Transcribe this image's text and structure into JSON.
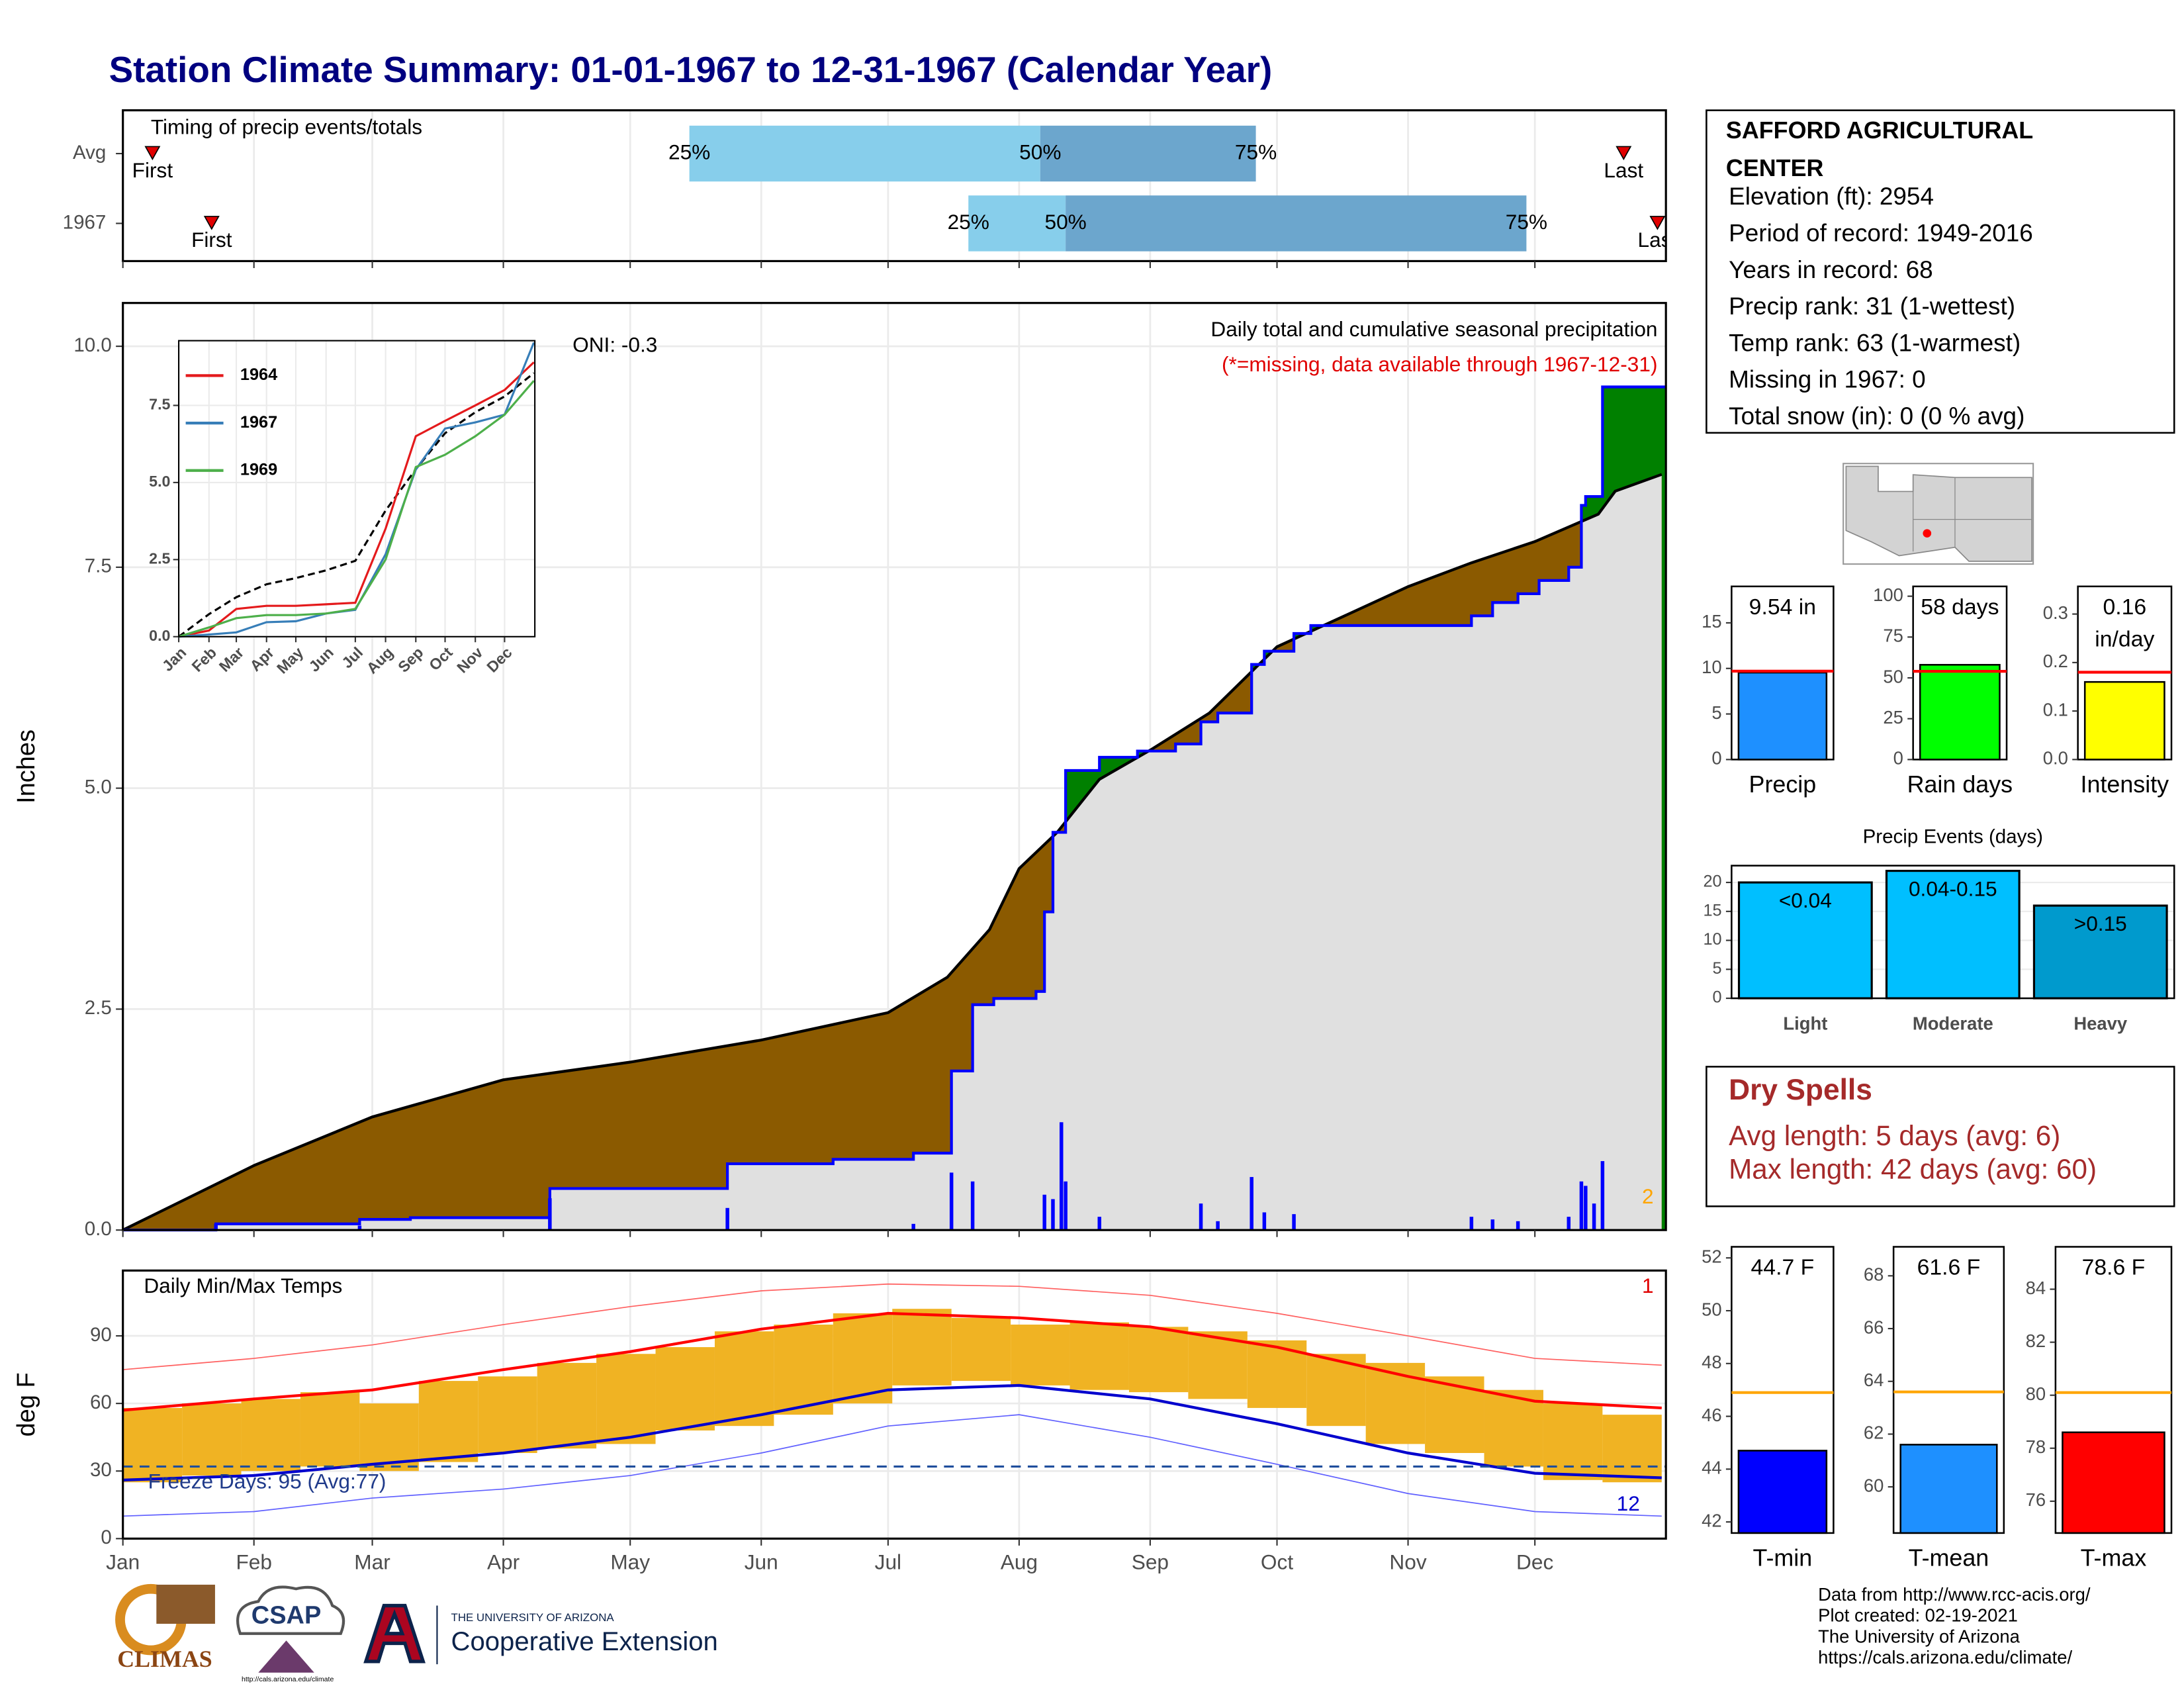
{
  "title": "Station Climate Summary: 01-01-1967 to 12-31-1967 (Calendar Year)",
  "station": {
    "name": "SAFFORD AGRICULTURAL CENTER",
    "lines": [
      "Elevation (ft): 2954",
      "Period of record: 1949-2016",
      "Years in record: 68",
      "Precip rank: 31 (1-wettest)",
      "Temp rank: 63 (1-warmest)",
      "Missing in 1967: 0",
      "Total snow (in): 0 (0 % avg)"
    ]
  },
  "dry_spells": {
    "title": "Dry Spells",
    "lines": [
      "Avg length: 5 days (avg: 6)",
      "Max length: 42 days (avg: 60)"
    ]
  },
  "credits": [
    "Data from http://www.rcc-acis.org/",
    "Plot created: 02-19-2021",
    "The University of Arizona",
    "https://cals.arizona.edu/climate/"
  ],
  "logos": {
    "climas": "CLIMAS",
    "csap": "CSAP",
    "csap_url": "http://cals.arizona.edu/climate",
    "university": "THE UNIVERSITY OF ARIZONA",
    "extension": "Cooperative Extension"
  },
  "chart_data": [
    {
      "type": "timing",
      "title": "Timing of precip events/totals",
      "categories": [
        "Avg",
        "1967"
      ],
      "marker_labels": [
        "First",
        "25%",
        "50%",
        "75%",
        "Last"
      ],
      "values": [
        [
          8,
          135,
          218,
          269,
          356
        ],
        [
          22,
          201,
          224,
          333,
          364
        ]
      ],
      "colors": [
        "#87ceeb",
        "#6ca6cd"
      ],
      "marker_color": "#e00000"
    },
    {
      "type": "area",
      "ylabel": "Inches",
      "ylim": [
        0,
        10.49
      ],
      "yticks": [
        {
          "value": 0,
          "label": "0.0"
        },
        {
          "value": 2.5,
          "label": "2.5"
        },
        {
          "value": 5,
          "label": "5.0"
        },
        {
          "value": 7.5,
          "label": "7.5"
        },
        {
          "value": 10,
          "label": "10.0"
        }
      ],
      "oni": "ONI: -0.3",
      "subtitle": "Daily total and cumulative seasonal precipitation",
      "note": "(*=missing, data available through 1967-12-31)",
      "annotation": "2",
      "fill_below": "#8b5a00",
      "fill_above": "#008000",
      "fill_base": "#e0e0e0",
      "average": {
        "color": "#000000",
        "x": [
          1,
          32,
          60,
          91,
          121,
          152,
          182,
          196,
          206,
          213,
          222,
          232,
          244,
          258,
          274,
          290,
          305,
          320,
          335,
          350,
          354,
          365
        ],
        "values": [
          0,
          0.73,
          1.28,
          1.7,
          1.9,
          2.15,
          2.46,
          2.86,
          3.4,
          4.09,
          4.5,
          5.1,
          5.43,
          5.85,
          6.6,
          6.95,
          7.28,
          7.55,
          7.79,
          8.1,
          8.36,
          8.55
        ]
      },
      "observed": {
        "color": "#0000ff",
        "x": [
          1,
          23,
          57,
          69,
          102,
          144,
          169,
          188,
          197,
          202,
          207,
          217,
          219,
          221,
          224,
          232,
          241,
          250,
          256,
          260,
          268,
          271,
          278,
          282,
          320,
          325,
          331,
          336,
          343,
          346,
          347,
          351
        ],
        "values": [
          0,
          0.07,
          0.12,
          0.14,
          0.47,
          0.75,
          0.8,
          0.87,
          1.8,
          2.55,
          2.62,
          2.7,
          3.6,
          4.5,
          5.2,
          5.35,
          5.42,
          5.5,
          5.75,
          5.85,
          6.4,
          6.55,
          6.75,
          6.84,
          6.95,
          7.1,
          7.2,
          7.35,
          7.5,
          8.2,
          8.3,
          9.54
        ]
      },
      "daily": {
        "color": "#0000ff",
        "x": [
          23,
          57,
          102,
          144,
          188,
          197,
          202,
          219,
          221,
          223,
          224,
          232,
          256,
          260,
          268,
          271,
          278,
          320,
          325,
          331,
          343,
          346,
          347,
          349,
          351
        ],
        "values": [
          0.07,
          0.05,
          0.36,
          0.25,
          0.07,
          0.65,
          0.55,
          0.4,
          0.35,
          1.22,
          0.55,
          0.15,
          0.3,
          0.1,
          0.6,
          0.2,
          0.18,
          0.15,
          0.12,
          0.1,
          0.15,
          0.55,
          0.5,
          0.3,
          0.78
        ]
      }
    },
    {
      "type": "line",
      "xlim": [
        1,
        366
      ],
      "ylim": [
        0,
        9.6
      ],
      "xticks": [
        {
          "value": 1,
          "label": "Jan"
        },
        {
          "value": 32,
          "label": "Feb"
        },
        {
          "value": 60,
          "label": "Mar"
        },
        {
          "value": 91,
          "label": "Apr"
        },
        {
          "value": 121,
          "label": "May"
        },
        {
          "value": 152,
          "label": "Jun"
        },
        {
          "value": 182,
          "label": "Jul"
        },
        {
          "value": 213,
          "label": "Aug"
        },
        {
          "value": 244,
          "label": "Sep"
        },
        {
          "value": 274,
          "label": "Oct"
        },
        {
          "value": 305,
          "label": "Nov"
        },
        {
          "value": 335,
          "label": "Dec"
        }
      ],
      "yticks": [
        {
          "value": 0,
          "label": "0.0"
        },
        {
          "value": 2.5,
          "label": "2.5"
        },
        {
          "value": 5,
          "label": "5.0"
        },
        {
          "value": 7.5,
          "label": "7.5"
        }
      ],
      "x": [
        1,
        32,
        60,
        91,
        121,
        152,
        182,
        213,
        244,
        274,
        305,
        335,
        365
      ],
      "series": [
        {
          "name": "1964",
          "color": "#e41a1c",
          "values": [
            0,
            0.2,
            0.9,
            1.0,
            1.0,
            1.05,
            1.1,
            3.5,
            6.5,
            7.0,
            7.5,
            8.0,
            8.9
          ]
        },
        {
          "name": "1967",
          "color": "#377eb8",
          "values": [
            0,
            0.07,
            0.14,
            0.47,
            0.5,
            0.75,
            0.87,
            2.67,
            5.42,
            6.75,
            6.95,
            7.2,
            9.54
          ]
        },
        {
          "name": "1969",
          "color": "#4daf4a",
          "values": [
            0,
            0.3,
            0.6,
            0.7,
            0.7,
            0.75,
            0.9,
            2.5,
            5.5,
            5.9,
            6.5,
            7.2,
            8.3
          ]
        }
      ],
      "average": {
        "color": "#000000",
        "values": [
          0,
          0.73,
          1.28,
          1.7,
          1.9,
          2.15,
          2.46,
          4.09,
          5.43,
          6.6,
          7.28,
          7.79,
          8.55
        ]
      }
    },
    {
      "type": "temperature",
      "title": "Daily Min/Max Temps",
      "ylabel": "deg F",
      "xlim": [
        1,
        366
      ],
      "ylim": [
        0,
        119
      ],
      "yticks": [
        0,
        30,
        60,
        90
      ],
      "xticks": [
        {
          "value": 1,
          "label": "Jan"
        },
        {
          "value": 32,
          "label": "Feb"
        },
        {
          "value": 60,
          "label": "Mar"
        },
        {
          "value": 91,
          "label": "Apr"
        },
        {
          "value": 121,
          "label": "May"
        },
        {
          "value": 152,
          "label": "Jun"
        },
        {
          "value": 182,
          "label": "Jul"
        },
        {
          "value": 213,
          "label": "Aug"
        },
        {
          "value": 244,
          "label": "Sep"
        },
        {
          "value": 274,
          "label": "Oct"
        },
        {
          "value": 305,
          "label": "Nov"
        },
        {
          "value": 335,
          "label": "Dec"
        }
      ],
      "daily": {
        "color": "#f0b323",
        "width": 14,
        "x": [
          1,
          15,
          29,
          43,
          57,
          71,
          85,
          99,
          113,
          127,
          141,
          155,
          169,
          183,
          197,
          211,
          225,
          239,
          253,
          267,
          281,
          295,
          309,
          323,
          337,
          351
        ],
        "min": [
          25,
          28,
          30,
          32,
          30,
          34,
          38,
          40,
          42,
          48,
          50,
          55,
          60,
          68,
          70,
          68,
          66,
          65,
          62,
          58,
          50,
          42,
          38,
          32,
          26,
          25
        ],
        "max": [
          58,
          60,
          62,
          65,
          60,
          70,
          72,
          78,
          82,
          85,
          92,
          95,
          100,
          102,
          98,
          95,
          96,
          94,
          92,
          88,
          82,
          78,
          72,
          66,
          60,
          55
        ]
      },
      "monthly_x": [
        1,
        32,
        60,
        91,
        121,
        152,
        182,
        213,
        244,
        274,
        305,
        335,
        365
      ],
      "average_max": {
        "color": "#ff0000",
        "values": [
          57,
          62,
          66,
          75,
          83,
          93,
          100,
          98,
          94,
          85,
          72,
          61,
          58
        ]
      },
      "average_min": {
        "color": "#0000cd",
        "values": [
          26,
          28,
          33,
          38,
          45,
          55,
          66,
          68,
          62,
          51,
          38,
          29,
          27
        ]
      },
      "record_max": {
        "color": "#ff6060",
        "values": [
          75,
          80,
          86,
          95,
          103,
          110,
          113,
          112,
          108,
          100,
          90,
          80,
          77
        ]
      },
      "record_min": {
        "color": "#6060ff",
        "values": [
          10,
          12,
          18,
          22,
          28,
          38,
          50,
          55,
          45,
          33,
          20,
          12,
          10
        ]
      },
      "freeze_threshold": 32,
      "freeze_color": "#1f4e9c",
      "annotations": [
        "Freeze Days: 95 (Avg:77)",
        "1",
        "12"
      ]
    },
    {
      "type": "gauge",
      "category": "Precip",
      "value": 9.54,
      "value_label": "9.54 in",
      "average": 9.7,
      "average_color": "#ff0000",
      "color": "#1e90ff",
      "ylim": [
        0,
        19
      ],
      "yticks": [
        0,
        5,
        10,
        15
      ]
    },
    {
      "type": "gauge",
      "category": "Rain days",
      "value": 58,
      "value_label": "58 days",
      "average": 54,
      "average_color": "#ff0000",
      "color": "#00ff00",
      "ylim": [
        0,
        106
      ],
      "yticks": [
        0,
        25,
        50,
        75,
        100
      ]
    },
    {
      "type": "gauge",
      "category": "Intensity",
      "value": 0.16,
      "value_label": "0.16 in/day",
      "average": 0.18,
      "average_color": "#ff0000",
      "color": "#ffff00",
      "ylim": [
        0,
        0.357
      ],
      "yticks": [
        {
          "value": 0,
          "label": "0.0"
        },
        {
          "value": 0.1,
          "label": "0.1"
        },
        {
          "value": 0.2,
          "label": "0.2"
        },
        {
          "value": 0.3,
          "label": "0.3"
        }
      ]
    },
    {
      "type": "bar",
      "title": "Precip Events (days)",
      "categories": [
        "Light",
        "Moderate",
        "Heavy"
      ],
      "values": [
        20,
        22,
        16
      ],
      "value_labels": [
        "<0.04",
        "0.04-0.15",
        ">0.15"
      ],
      "colors": [
        "#00bfff",
        "#00bfff",
        "#009acd"
      ],
      "ylim": [
        0,
        22.9
      ],
      "yticks": [
        0,
        5,
        10,
        15,
        20
      ]
    },
    {
      "type": "gauge",
      "category": "T-min",
      "value": 44.7,
      "value_label": "44.7 F",
      "average": 46.9,
      "average_color": "#ffa500",
      "color": "#0000ff",
      "ylim": [
        41.58,
        52.42
      ],
      "yticks": [
        42,
        44,
        46,
        48,
        50,
        52
      ]
    },
    {
      "type": "gauge",
      "category": "T-mean",
      "value": 61.6,
      "value_label": "61.6 F",
      "average": 63.6,
      "average_color": "#ffa500",
      "color": "#1e90ff",
      "ylim": [
        58.25,
        69.1
      ],
      "yticks": [
        60,
        62,
        64,
        66,
        68
      ]
    },
    {
      "type": "gauge",
      "category": "T-max",
      "value": 78.6,
      "value_label": "78.6 F",
      "average": 80.1,
      "average_color": "#ffa500",
      "color": "#ff0000",
      "ylim": [
        74.8,
        85.6
      ],
      "yticks": [
        76,
        78,
        80,
        82,
        84
      ]
    }
  ]
}
